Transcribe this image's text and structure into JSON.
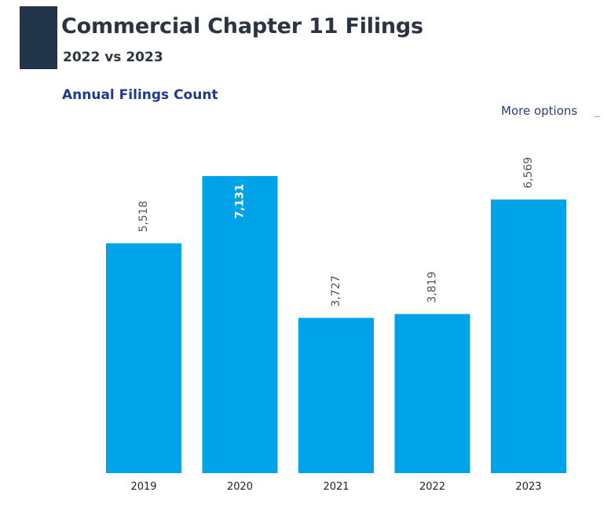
{
  "header": {
    "title": "Commercial Chapter 11 Filings",
    "subtitle": "2022 vs 2023"
  },
  "visual": {
    "more_options_label": "More options",
    "ellipsis": "···"
  },
  "colors": {
    "bar": "#00a3e8",
    "accent": "#22344a"
  },
  "chart_data": {
    "type": "bar",
    "title": "Annual Filings Count",
    "xlabel": "",
    "ylabel": "",
    "categories": [
      "2019",
      "2020",
      "2021",
      "2022",
      "2023"
    ],
    "values": [
      5518,
      7131,
      3727,
      3819,
      6569
    ],
    "data_labels": [
      "5,518",
      "7,131",
      "3,727",
      "3,819",
      "6,569"
    ],
    "ylim": [
      0,
      7131
    ],
    "grid": false,
    "legend": "none"
  }
}
